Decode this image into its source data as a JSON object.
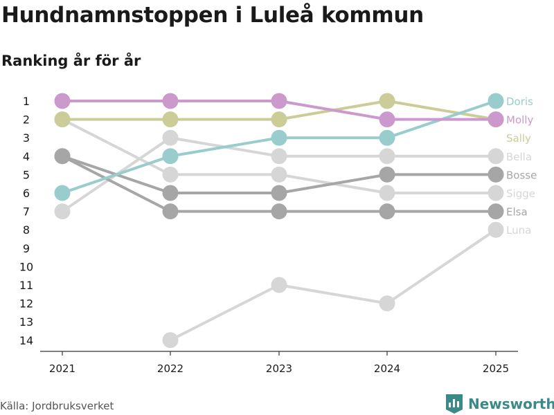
{
  "header": {
    "title": "Hundnamnstoppen i Luleå kommun",
    "subtitle": "Ranking år för år"
  },
  "footer": {
    "source": "Källa: Jordbruksverket",
    "brand": "Newsworthy"
  },
  "chart_data": {
    "type": "line",
    "title": "Hundnamnstoppen i Luleå kommun",
    "subtitle": "Ranking år för år",
    "x": [
      "2021",
      "2022",
      "2023",
      "2024",
      "2025"
    ],
    "ylim": [
      1,
      14
    ],
    "y_reversed": true,
    "y_ticks": [
      1,
      2,
      3,
      4,
      5,
      6,
      7,
      8,
      9,
      10,
      11,
      12,
      13,
      14
    ],
    "xlabel": "",
    "ylabel": "",
    "series": [
      {
        "name": "Luna",
        "color": "#d6d6d6",
        "values": [
          null,
          14,
          11,
          12,
          8
        ]
      },
      {
        "name": "Sigge",
        "color": "#d6d6d6",
        "values": [
          2,
          5,
          5,
          6,
          6
        ]
      },
      {
        "name": "Bella",
        "color": "#d6d6d6",
        "values": [
          7,
          3,
          4,
          4,
          4
        ]
      },
      {
        "name": "Elsa",
        "color": "#a6a6a6",
        "values": [
          4,
          7,
          7,
          7,
          7
        ]
      },
      {
        "name": "Bosse",
        "color": "#a6a6a6",
        "values": [
          4,
          6,
          6,
          5,
          5
        ]
      },
      {
        "name": "Sally",
        "color": "#cccc99",
        "values": [
          2,
          2,
          2,
          1,
          2
        ]
      },
      {
        "name": "Doris",
        "color": "#99cccc",
        "values": [
          6,
          4,
          3,
          3,
          1
        ]
      },
      {
        "name": "Molly",
        "color": "#cc99cc",
        "values": [
          1,
          1,
          1,
          2,
          2
        ]
      }
    ],
    "end_labels": [
      "Doris",
      "Molly",
      "Sally",
      "Bella",
      "Bosse",
      "Sigge",
      "Elsa",
      "Luna"
    ]
  }
}
